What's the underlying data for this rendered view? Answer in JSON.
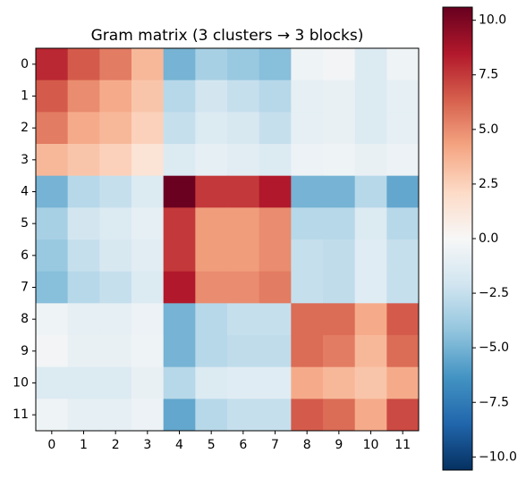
{
  "chart_data": {
    "type": "heatmap",
    "title": "Gram matrix (3 clusters → 3 blocks)",
    "xticks": [
      0,
      1,
      2,
      3,
      4,
      5,
      6,
      7,
      8,
      9,
      10,
      11
    ],
    "yticks": [
      0,
      1,
      2,
      3,
      4,
      5,
      6,
      7,
      8,
      9,
      10,
      11
    ],
    "values": [
      [
        8,
        6.5,
        5.5,
        3.5,
        -5,
        -3.5,
        -4,
        -4.5,
        -0.5,
        -0.3,
        -1.5,
        -0.5
      ],
      [
        6.5,
        5,
        4,
        3,
        -3,
        -2,
        -2.5,
        -3,
        -1,
        -0.8,
        -1.5,
        -1
      ],
      [
        5.5,
        4,
        3.5,
        2.5,
        -2.5,
        -1.5,
        -1.8,
        -2.5,
        -1,
        -0.8,
        -1.5,
        -1
      ],
      [
        3.5,
        3,
        2.5,
        1.5,
        -1.5,
        -1,
        -1.2,
        -1.5,
        -0.6,
        -0.5,
        -0.8,
        -0.6
      ],
      [
        -5,
        -3,
        -2.5,
        -1.5,
        10.5,
        7.5,
        7.5,
        8.5,
        -5,
        -5,
        -3,
        -5.5
      ],
      [
        -3.5,
        -2,
        -1.5,
        -1,
        7.5,
        4.5,
        4.5,
        5,
        -3,
        -3,
        -1.5,
        -3
      ],
      [
        -4,
        -2.5,
        -1.8,
        -1.2,
        7.5,
        4.5,
        4.5,
        5,
        -2.5,
        -2.7,
        -1.3,
        -2.5
      ],
      [
        -4.5,
        -3,
        -2.5,
        -1.5,
        8.5,
        5,
        5,
        5.5,
        -2.5,
        -2.7,
        -1.3,
        -2.5
      ],
      [
        -0.5,
        -1,
        -1,
        -0.6,
        -5,
        -3,
        -2.5,
        -2.5,
        6,
        6,
        4,
        6.5
      ],
      [
        -0.3,
        -0.8,
        -0.8,
        -0.5,
        -5,
        -3,
        -2.7,
        -2.7,
        6,
        5.5,
        3.5,
        6
      ],
      [
        -1.5,
        -1.5,
        -1.5,
        -0.8,
        -3,
        -1.5,
        -1.3,
        -1.3,
        4,
        3.5,
        3,
        4
      ],
      [
        -0.5,
        -1,
        -1,
        -0.6,
        -5.5,
        -3,
        -2.5,
        -2.5,
        6.5,
        6,
        4,
        7
      ]
    ],
    "colormap": [
      "#053061",
      "#2166ac",
      "#4393c3",
      "#92c5de",
      "#d1e5f0",
      "#f7f7f7",
      "#fddbc7",
      "#f4a582",
      "#d6604d",
      "#b2182b",
      "#67001f"
    ],
    "clim": [
      -10.6,
      10.6
    ],
    "colorbar_ticks": [
      {
        "value": -10,
        "label": "−10.0"
      },
      {
        "value": -7.5,
        "label": "−7.5"
      },
      {
        "value": -5,
        "label": "−5.0"
      },
      {
        "value": -2.5,
        "label": "−2.5"
      },
      {
        "value": 0,
        "label": "0.0"
      },
      {
        "value": 2.5,
        "label": "2.5"
      },
      {
        "value": 5,
        "label": "5.0"
      },
      {
        "value": 7.5,
        "label": "7.5"
      },
      {
        "value": 10,
        "label": "10.0"
      }
    ]
  }
}
